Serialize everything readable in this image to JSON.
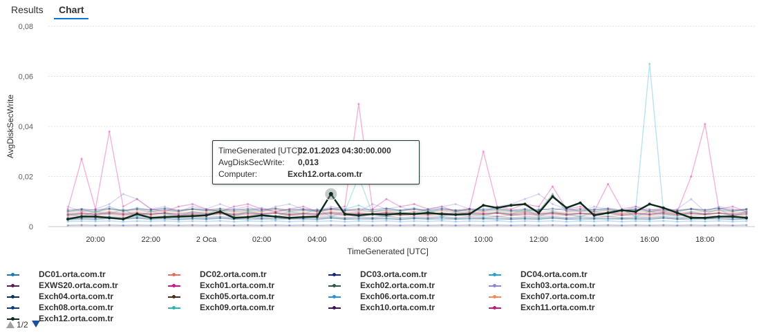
{
  "tabs": [
    {
      "label": "Results",
      "active": false
    },
    {
      "label": "Chart",
      "active": true
    }
  ],
  "tooltip": {
    "time_label": "TimeGenerated [UTC]:",
    "time_value": "02.01.2023 04:30:00.000",
    "metric_label": "AvgDiskSecWrite:",
    "metric_value": "0,013",
    "computer_label": "Computer:",
    "computer_value": "Exch12.orta.com.tr"
  },
  "pager": {
    "text": "1/2"
  },
  "chart_data": {
    "type": "line",
    "xlabel": "TimeGenerated [UTC]",
    "ylabel": "AvgDiskSecWrite",
    "ylim": [
      0,
      0.08
    ],
    "y_ticks": [
      0,
      0.02,
      0.04,
      0.06,
      0.08
    ],
    "y_tick_labels": [
      "0",
      "0,02",
      "0,04",
      "0,06",
      "0,08"
    ],
    "x_hours": [
      -5,
      -4.5,
      -4,
      -3.5,
      -3,
      -2.5,
      -2,
      -1.5,
      -1,
      -0.5,
      0,
      0.5,
      1,
      1.5,
      2,
      2.5,
      3,
      3.5,
      4,
      4.5,
      5,
      5.5,
      6,
      6.5,
      7,
      7.5,
      8,
      8.5,
      9,
      9.5,
      10,
      10.5,
      11,
      11.5,
      12,
      12.5,
      13,
      13.5,
      14,
      14.5,
      15,
      15.5,
      16,
      16.5,
      17,
      17.5,
      18,
      18.5,
      19,
      19.5
    ],
    "x_ticks": [
      -4,
      -2,
      0,
      2,
      4,
      6,
      8,
      10,
      12,
      14,
      16,
      18
    ],
    "x_tick_labels": [
      "20:00",
      "22:00",
      "2 Oca",
      "02:00",
      "04:00",
      "06:00",
      "08:00",
      "10:00",
      "12:00",
      "14:00",
      "16:00",
      "18:00"
    ],
    "grid": true,
    "legend": "bottom",
    "highlight": {
      "series": "Exch12.orta.com.tr",
      "x_hour": 4.5,
      "value": 0.013
    },
    "series": [
      {
        "name": "DC01.orta.com.tr",
        "color": "#1f77b4",
        "values": [
          0.0025,
          0.003,
          0.0028,
          0.0032,
          0.003,
          0.0035,
          0.0028,
          0.003,
          0.0027,
          0.0031,
          0.0029,
          0.0033,
          0.003,
          0.0028,
          0.0031,
          0.0029,
          0.0032,
          0.003,
          0.0028,
          0.0034,
          0.003,
          0.0029,
          0.0031,
          0.003,
          0.0028,
          0.0033,
          0.003,
          0.0029,
          0.0031,
          0.003,
          0.0032,
          0.0028,
          0.003,
          0.0031,
          0.0029,
          0.0033,
          0.003,
          0.0028,
          0.0031,
          0.0029,
          0.0032,
          0.003,
          0.0028,
          0.0034,
          0.003,
          0.0029,
          0.0031,
          0.003,
          0.0028,
          0.003
        ]
      },
      {
        "name": "DC02.orta.com.tr",
        "color": "#e3705e",
        "values": [
          0.004,
          0.0045,
          0.0042,
          0.0048,
          0.004,
          0.005,
          0.0044,
          0.0046,
          0.0041,
          0.0047,
          0.0043,
          0.0049,
          0.0042,
          0.0045,
          0.0048,
          0.0041,
          0.0046,
          0.0044,
          0.0042,
          0.0047,
          0.0045,
          0.0043,
          0.0048,
          0.0041,
          0.0046,
          0.0044,
          0.0042,
          0.0047,
          0.0045,
          0.0043,
          0.0048,
          0.0041,
          0.0046,
          0.0044,
          0.0042,
          0.0047,
          0.0045,
          0.0043,
          0.0048,
          0.0041,
          0.0046,
          0.0044,
          0.0042,
          0.0047,
          0.0045,
          0.0043,
          0.0048,
          0.0041,
          0.0046,
          0.0044
        ]
      },
      {
        "name": "DC03.orta.com.tr",
        "color": "#1a237e",
        "values": [
          0.0005,
          0.0006,
          0.0005,
          0.0006,
          0.0005,
          0.0006,
          0.0005,
          0.0006,
          0.0005,
          0.0006,
          0.0005,
          0.0006,
          0.0005,
          0.0006,
          0.0005,
          0.0006,
          0.0005,
          0.0006,
          0.0005,
          0.0006,
          0.0005,
          0.0006,
          0.0005,
          0.0006,
          0.0005,
          0.0006,
          0.0005,
          0.0006,
          0.0005,
          0.0006,
          0.0005,
          0.0006,
          0.0005,
          0.0006,
          0.0005,
          0.0006,
          0.0005,
          0.0006,
          0.0005,
          0.0006,
          0.0005,
          0.0006,
          0.0005,
          0.0006,
          0.0005,
          0.0006,
          0.0005,
          0.0006,
          0.0005,
          0.0006
        ]
      },
      {
        "name": "DC04.orta.com.tr",
        "color": "#26a3c9",
        "values": [
          0.006,
          0.007,
          0.0055,
          0.008,
          0.006,
          0.0075,
          0.0065,
          0.007,
          0.006,
          0.0072,
          0.0068,
          0.0062,
          0.007,
          0.0065,
          0.0075,
          0.006,
          0.007,
          0.0066,
          0.0062,
          0.0071,
          0.0069,
          0.0085,
          0.006,
          0.007,
          0.0065,
          0.0075,
          0.006,
          0.007,
          0.0066,
          0.0062,
          0.0071,
          0.0069,
          0.0064,
          0.006,
          0.007,
          0.0065,
          0.0075,
          0.006,
          0.007,
          0.0066,
          0.0062,
          0.0071,
          0.065,
          0.0064,
          0.006,
          0.007,
          0.0065,
          0.0075,
          0.006,
          0.007
        ]
      },
      {
        "name": "EXWS20.orta.com.tr",
        "color": "#5b1c4f",
        "values": [
          0.005,
          0.0055,
          0.005,
          0.0058,
          0.0052,
          0.0056,
          0.005,
          0.0054,
          0.0051,
          0.0057,
          0.0053,
          0.0055,
          0.005,
          0.0058,
          0.0052,
          0.0056,
          0.005,
          0.0054,
          0.0051,
          0.0057,
          0.0053,
          0.0055,
          0.005,
          0.0058,
          0.0052,
          0.0056,
          0.005,
          0.0054,
          0.0051,
          0.0057,
          0.0053,
          0.0055,
          0.005,
          0.0058,
          0.0052,
          0.0056,
          0.005,
          0.0054,
          0.0051,
          0.0057,
          0.0053,
          0.0055,
          0.005,
          0.0058,
          0.0052,
          0.0056,
          0.005,
          0.0054,
          0.0051,
          0.0057
        ]
      },
      {
        "name": "Exch01.orta.com.tr",
        "color": "#d4108a",
        "values": [
          0.007,
          0.027,
          0.007,
          0.038,
          0.008,
          0.011,
          0.007,
          0.006,
          0.008,
          0.009,
          0.007,
          0.006,
          0.008,
          0.009,
          0.007,
          0.006,
          0.007,
          0.008,
          0.006,
          0.007,
          0.008,
          0.049,
          0.007,
          0.011,
          0.008,
          0.009,
          0.007,
          0.008,
          0.006,
          0.007,
          0.03,
          0.008,
          0.007,
          0.009,
          0.008,
          0.016,
          0.007,
          0.008,
          0.006,
          0.017,
          0.007,
          0.008,
          0.006,
          0.007,
          0.006,
          0.02,
          0.041,
          0.007,
          0.008,
          0.006
        ]
      },
      {
        "name": "Exch02.orta.com.tr",
        "color": "#2e5a45",
        "values": [
          0.006,
          0.0065,
          0.006,
          0.007,
          0.0062,
          0.0068,
          0.006,
          0.0066,
          0.0061,
          0.0069,
          0.0063,
          0.0067,
          0.006,
          0.0065,
          0.0062,
          0.007,
          0.006,
          0.0066,
          0.0061,
          0.0068,
          0.0063,
          0.0067,
          0.006,
          0.0065,
          0.0062,
          0.007,
          0.006,
          0.0066,
          0.0061,
          0.0068,
          0.0063,
          0.0067,
          0.006,
          0.0065,
          0.0062,
          0.013,
          0.006,
          0.0066,
          0.0061,
          0.0068,
          0.0063,
          0.0067,
          0.006,
          0.0065,
          0.0062,
          0.007,
          0.006,
          0.0066,
          0.0061,
          0.0068
        ]
      },
      {
        "name": "Exch03.orta.com.tr",
        "color": "#8b86d6",
        "values": [
          0.008,
          0.006,
          0.007,
          0.009,
          0.013,
          0.011,
          0.007,
          0.008,
          0.006,
          0.008,
          0.007,
          0.009,
          0.007,
          0.008,
          0.006,
          0.008,
          0.009,
          0.007,
          0.006,
          0.008,
          0.007,
          0.006,
          0.009,
          0.007,
          0.008,
          0.006,
          0.007,
          0.008,
          0.009,
          0.007,
          0.006,
          0.008,
          0.009,
          0.011,
          0.013,
          0.009,
          0.007,
          0.006,
          0.008,
          0.007,
          0.006,
          0.008,
          0.007,
          0.006,
          0.007,
          0.011,
          0.006,
          0.008,
          0.007,
          0.006
        ]
      },
      {
        "name": "Exch04.orta.com.tr",
        "color": "#0b2e5b",
        "values": [
          0.003,
          0.0032,
          0.0031,
          0.0035,
          0.003,
          0.0033,
          0.0031,
          0.0034,
          0.003,
          0.0032,
          0.0031,
          0.0035,
          0.003,
          0.0033,
          0.0031,
          0.0034,
          0.003,
          0.0032,
          0.0031,
          0.0035,
          0.003,
          0.0033,
          0.0031,
          0.0034,
          0.003,
          0.0032,
          0.0031,
          0.0035,
          0.003,
          0.0033,
          0.0031,
          0.0034,
          0.003,
          0.0032,
          0.0031,
          0.0035,
          0.003,
          0.0033,
          0.0031,
          0.0034,
          0.003,
          0.0032,
          0.0031,
          0.0035,
          0.003,
          0.0033,
          0.0031,
          0.0034,
          0.003,
          0.0032
        ]
      },
      {
        "name": "Exch05.orta.com.tr",
        "color": "#4a2c1a",
        "values": [
          0.0045,
          0.005,
          0.0047,
          0.0052,
          0.0046,
          0.0051,
          0.0048,
          0.0053,
          0.0045,
          0.005,
          0.0047,
          0.0052,
          0.0046,
          0.0051,
          0.0048,
          0.0053,
          0.0045,
          0.005,
          0.0047,
          0.0052,
          0.0046,
          0.0051,
          0.0048,
          0.0053,
          0.0045,
          0.005,
          0.0047,
          0.0052,
          0.0046,
          0.0051,
          0.0048,
          0.0053,
          0.0045,
          0.005,
          0.0047,
          0.0052,
          0.0046,
          0.0051,
          0.0048,
          0.0053,
          0.0045,
          0.005,
          0.0047,
          0.0052,
          0.0046,
          0.0051,
          0.0048,
          0.0053,
          0.0045,
          0.005
        ]
      },
      {
        "name": "Exch06.orta.com.tr",
        "color": "#2b8fd9",
        "values": [
          0.002,
          0.0022,
          0.0021,
          0.0023,
          0.002,
          0.0022,
          0.0021,
          0.0023,
          0.002,
          0.0022,
          0.0021,
          0.0023,
          0.002,
          0.0022,
          0.0021,
          0.0023,
          0.002,
          0.0022,
          0.0021,
          0.0023,
          0.002,
          0.0022,
          0.0021,
          0.0023,
          0.002,
          0.0022,
          0.0021,
          0.0023,
          0.002,
          0.0022,
          0.0021,
          0.0023,
          0.002,
          0.0022,
          0.0021,
          0.0023,
          0.002,
          0.0022,
          0.0021,
          0.0023,
          0.002,
          0.0022,
          0.0021,
          0.0023,
          0.002,
          0.0022,
          0.0021,
          0.0023,
          0.002,
          0.0022
        ]
      },
      {
        "name": "Exch07.orta.com.tr",
        "color": "#f08a5d",
        "values": [
          0.0055,
          0.006,
          0.0057,
          0.0062,
          0.0056,
          0.0061,
          0.0058,
          0.0063,
          0.0055,
          0.006,
          0.0057,
          0.0062,
          0.0056,
          0.0061,
          0.0058,
          0.0063,
          0.0055,
          0.006,
          0.0057,
          0.0062,
          0.0056,
          0.0061,
          0.0058,
          0.0063,
          0.0055,
          0.006,
          0.0057,
          0.0062,
          0.0056,
          0.0061,
          0.0058,
          0.0063,
          0.0055,
          0.006,
          0.0057,
          0.0062,
          0.0056,
          0.0061,
          0.0058,
          0.0063,
          0.0055,
          0.006,
          0.0057,
          0.0062,
          0.0056,
          0.0061,
          0.0058,
          0.0063,
          0.0055,
          0.006
        ]
      },
      {
        "name": "Exch08.orta.com.tr",
        "color": "#0f3c78",
        "values": [
          0.0035,
          0.0038,
          0.0036,
          0.004,
          0.0035,
          0.0039,
          0.0036,
          0.0041,
          0.0035,
          0.0038,
          0.0036,
          0.004,
          0.0035,
          0.0039,
          0.0036,
          0.0041,
          0.0035,
          0.0038,
          0.0036,
          0.004,
          0.0035,
          0.0039,
          0.0036,
          0.0041,
          0.0035,
          0.0038,
          0.0036,
          0.004,
          0.0035,
          0.0039,
          0.0036,
          0.0041,
          0.0035,
          0.0038,
          0.0036,
          0.004,
          0.0035,
          0.0039,
          0.0036,
          0.0041,
          0.0035,
          0.0038,
          0.0036,
          0.004,
          0.0035,
          0.0039,
          0.0036,
          0.0041,
          0.0035,
          0.0038
        ]
      },
      {
        "name": "Exch09.orta.com.tr",
        "color": "#2ab3b3",
        "values": [
          0.005,
          0.004,
          0.006,
          0.005,
          0.007,
          0.004,
          0.006,
          0.005,
          0.004,
          0.006,
          0.005,
          0.007,
          0.004,
          0.006,
          0.005,
          0.004,
          0.006,
          0.005,
          0.007,
          0.004,
          0.006,
          0.02,
          0.005,
          0.004,
          0.006,
          0.005,
          0.007,
          0.004,
          0.006,
          0.005,
          0.004,
          0.006,
          0.005,
          0.007,
          0.004,
          0.006,
          0.005,
          0.004,
          0.006,
          0.005,
          0.007,
          0.004,
          0.006,
          0.005,
          0.004,
          0.006,
          0.005,
          0.007,
          0.004,
          0.006
        ]
      },
      {
        "name": "Exch10.orta.com.tr",
        "color": "#3d1259",
        "values": [
          0.0065,
          0.007,
          0.0066,
          0.0072,
          0.0065,
          0.0071,
          0.0067,
          0.0073,
          0.0065,
          0.007,
          0.0066,
          0.0072,
          0.0065,
          0.0071,
          0.0067,
          0.0073,
          0.0065,
          0.007,
          0.0066,
          0.0072,
          0.0065,
          0.0071,
          0.0067,
          0.0073,
          0.0065,
          0.007,
          0.0066,
          0.0072,
          0.0065,
          0.0071,
          0.0067,
          0.0073,
          0.0065,
          0.007,
          0.0066,
          0.0072,
          0.0065,
          0.0071,
          0.0067,
          0.0073,
          0.0065,
          0.007,
          0.0066,
          0.0072,
          0.0065,
          0.0071,
          0.0067,
          0.0073,
          0.0065,
          0.007
        ]
      },
      {
        "name": "Exch11.orta.com.tr",
        "color": "#c2187a",
        "values": [
          0.0048,
          0.0052,
          0.005,
          0.0055,
          0.0049,
          0.0053,
          0.0051,
          0.0056,
          0.0048,
          0.0052,
          0.005,
          0.0055,
          0.0049,
          0.0053,
          0.0051,
          0.0056,
          0.0048,
          0.0052,
          0.005,
          0.0055,
          0.0049,
          0.0053,
          0.0051,
          0.0056,
          0.0048,
          0.0052,
          0.005,
          0.0055,
          0.0049,
          0.0053,
          0.0051,
          0.0056,
          0.0048,
          0.0052,
          0.005,
          0.0055,
          0.0049,
          0.0053,
          0.0051,
          0.0056,
          0.0048,
          0.0052,
          0.005,
          0.0055,
          0.0049,
          0.0053,
          0.0051,
          0.0056,
          0.0048,
          0.0052
        ]
      },
      {
        "name": "Exch12.orta.com.tr",
        "color": "#0d2b1e",
        "values": [
          0.003,
          0.004,
          0.004,
          0.0035,
          0.003,
          0.005,
          0.0035,
          0.0038,
          0.004,
          0.0042,
          0.0045,
          0.006,
          0.0035,
          0.0038,
          0.0045,
          0.004,
          0.0035,
          0.0038,
          0.004,
          0.013,
          0.005,
          0.0045,
          0.005,
          0.0048,
          0.0052,
          0.005,
          0.0055,
          0.005,
          0.0048,
          0.005,
          0.0085,
          0.0075,
          0.0085,
          0.009,
          0.0055,
          0.012,
          0.0075,
          0.0095,
          0.0045,
          0.0055,
          0.0065,
          0.006,
          0.009,
          0.0075,
          0.0055,
          0.0035,
          0.0035,
          0.004,
          0.004,
          0.0035
        ]
      }
    ]
  }
}
